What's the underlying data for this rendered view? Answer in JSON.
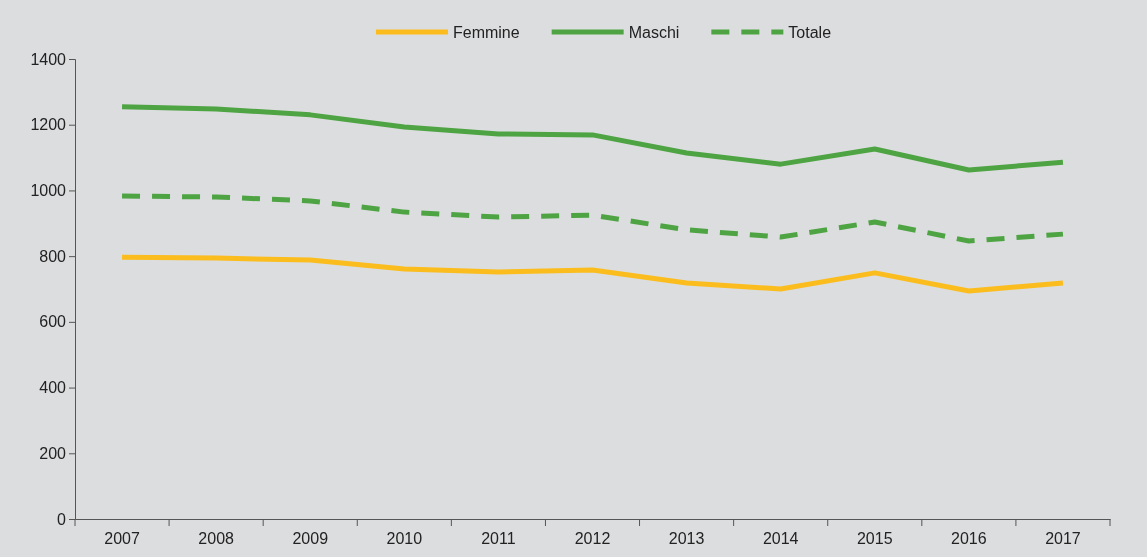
{
  "chart_data": {
    "type": "line",
    "categories": [
      "2007",
      "2008",
      "2009",
      "2010",
      "2011",
      "2012",
      "2013",
      "2014",
      "2015",
      "2016",
      "2017"
    ],
    "series": [
      {
        "name": "Femmine",
        "color": "#fbbd1e",
        "line_style": "solid",
        "values": [
          797,
          794,
          788,
          761,
          752,
          758,
          718,
          700,
          749,
          694,
          718
        ]
      },
      {
        "name": "Maschi",
        "color": "#4ea443",
        "line_style": "solid",
        "values": [
          1255,
          1248,
          1230,
          1193,
          1172,
          1169,
          1114,
          1080,
          1126,
          1062,
          1086
        ]
      },
      {
        "name": "Totale",
        "color": "#4ea443",
        "line_style": "dashed",
        "values": [
          983,
          980,
          968,
          934,
          919,
          925,
          880,
          858,
          904,
          846,
          867
        ]
      }
    ],
    "ylim": [
      0,
      1400
    ],
    "yticks": [
      0,
      200,
      400,
      600,
      800,
      1000,
      1200,
      1400
    ],
    "grid": false,
    "legend": "top",
    "marker": "none"
  }
}
